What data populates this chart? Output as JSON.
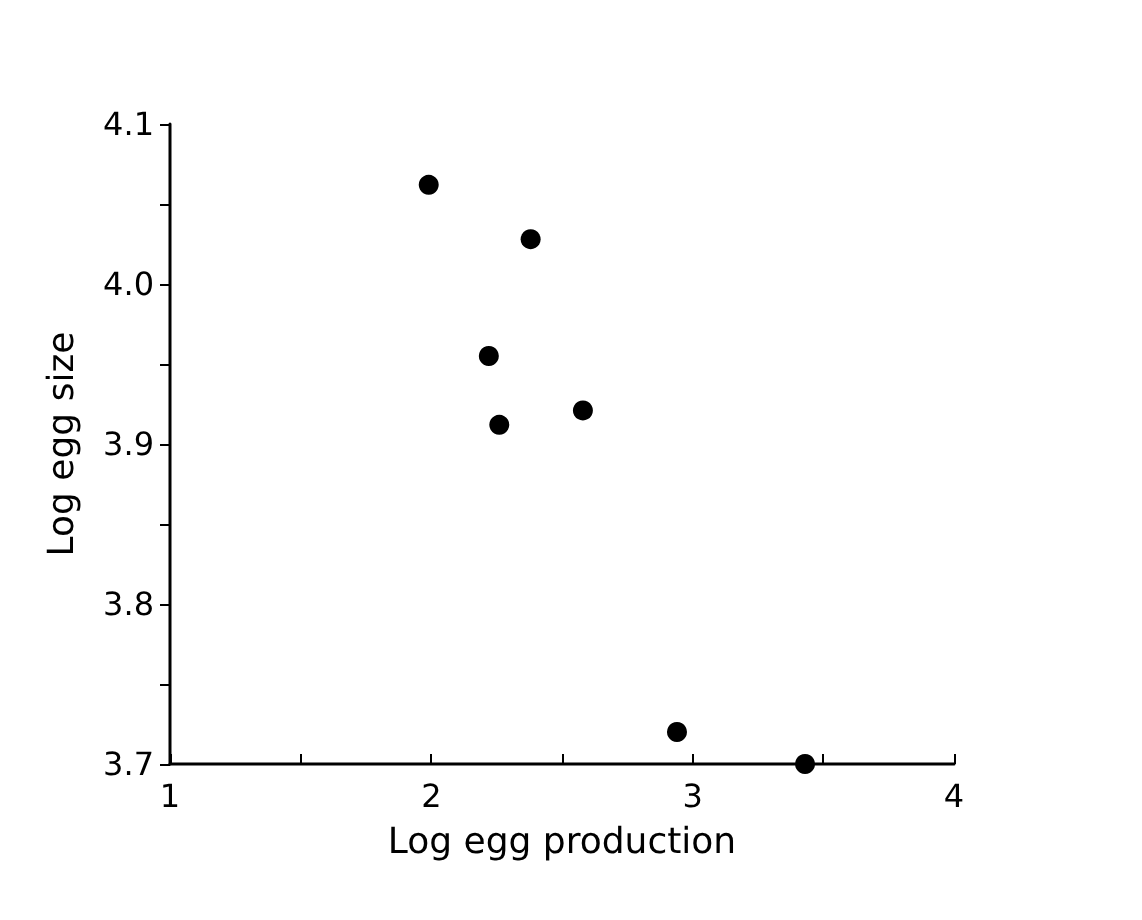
{
  "chart_data": {
    "type": "scatter",
    "xlabel": "Log egg production",
    "ylabel": "Log egg size",
    "x": [
      1.99,
      2.38,
      2.22,
      2.26,
      2.58,
      2.94,
      3.43
    ],
    "series": [
      {
        "color": "#000000",
        "values": [
          4.062,
          4.028,
          3.955,
          3.912,
          3.921,
          3.72,
          3.7
        ]
      }
    ],
    "xlim": [
      1,
      4
    ],
    "ylim": [
      3.7,
      4.1
    ],
    "xticks": [
      1,
      {
        "value": 1.5,
        "label": null
      },
      2,
      {
        "value": 2.5,
        "label": null
      },
      3,
      {
        "value": 3.5,
        "label": null
      },
      4
    ],
    "yticks": [
      {
        "value": 3.7,
        "label": "3.7"
      },
      {
        "value": 3.75,
        "label": null
      },
      {
        "value": 3.8,
        "label": "3.8"
      },
      {
        "value": 3.85,
        "label": null
      },
      {
        "value": 3.9,
        "label": "3.9"
      },
      {
        "value": 3.95,
        "label": null
      },
      {
        "value": 4.0,
        "label": "4.0"
      },
      {
        "value": 4.05,
        "label": null
      },
      {
        "value": 4.1,
        "label": "4.1"
      }
    ],
    "grid": false,
    "marker": "circle"
  }
}
